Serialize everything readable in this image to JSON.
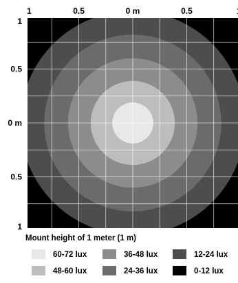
{
  "chart_data": {
    "type": "heatmap",
    "caption": "Mount height of 1 meter (1 m)",
    "x_ticks": [
      "1",
      "0.5",
      "0 m",
      "0.5",
      "1"
    ],
    "y_ticks": [
      "1",
      "0.5",
      "0 m",
      "0.5",
      "1"
    ],
    "xlim": [
      -1,
      1
    ],
    "ylim": [
      -1,
      1
    ],
    "grid": true,
    "rings": [
      {
        "label": "0-12 lux",
        "radius_m": 1.414,
        "color": "#000000"
      },
      {
        "label": "12-24 lux",
        "radius_m": 1.04,
        "color": "#4d4d4d"
      },
      {
        "label": "24-36 lux",
        "radius_m": 0.82,
        "color": "#6b6b6b"
      },
      {
        "label": "36-48 lux",
        "radius_m": 0.6,
        "color": "#8c8c8c"
      },
      {
        "label": "48-60 lux",
        "radius_m": 0.39,
        "color": "#bdbdbd"
      },
      {
        "label": "60-72 lux",
        "radius_m": 0.19,
        "color": "#e8e8e8"
      }
    ],
    "legend": [
      {
        "label": "60-72 lux",
        "color": "#e8e8e8"
      },
      {
        "label": "36-48 lux",
        "color": "#8c8c8c"
      },
      {
        "label": "12-24 lux",
        "color": "#4d4d4d"
      },
      {
        "label": "48-60 lux",
        "color": "#bdbdbd"
      },
      {
        "label": "24-36 lux",
        "color": "#6b6b6b"
      },
      {
        "label": "0-12 lux",
        "color": "#000000"
      }
    ],
    "legend_placement": "bottom"
  }
}
